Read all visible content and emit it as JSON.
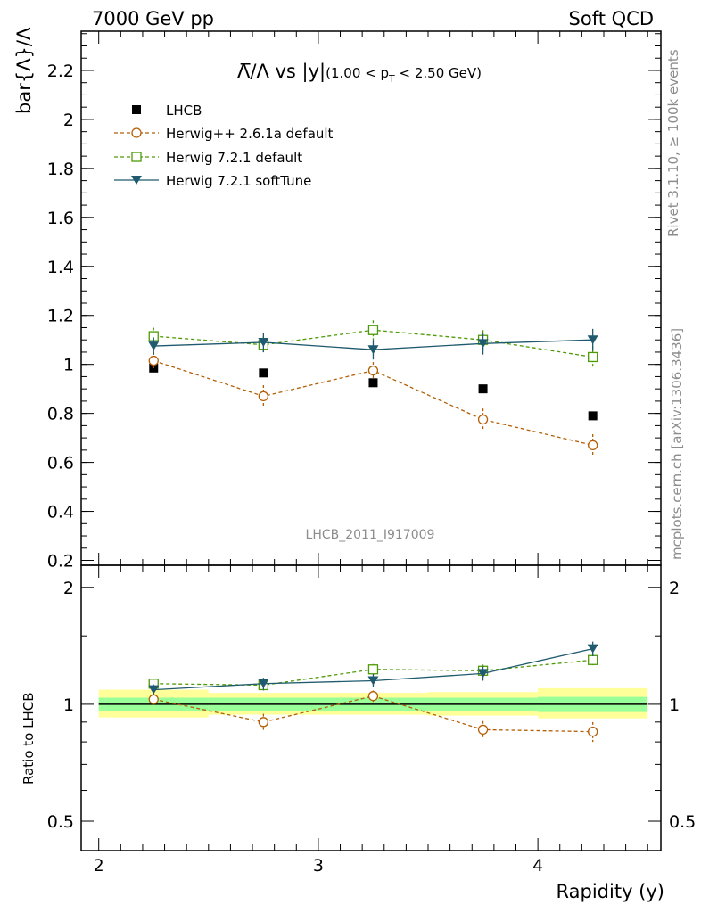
{
  "header": {
    "left": "7000 GeV pp",
    "right": "Soft QCD"
  },
  "side_labels": {
    "rivet": "Rivet 3.1.10, ≥ 100k events",
    "mcplots": "mcplots.cern.ch [arXiv:1306.3436]"
  },
  "watermark": "LHCB_2011_I917009",
  "title": {
    "main": "Λ̅/Λ vs |y|",
    "cut_open": "(1.00 < p",
    "cut_sub": "T",
    "cut_close": " < 2.50 GeV)"
  },
  "colors": {
    "data": "#000000",
    "herwigpp": "#b45f06",
    "herwig721": "#4e9a06",
    "softtune": "#1f5a6e",
    "band_outer": "#ffff99",
    "band_inner": "#99ff99"
  },
  "chart_data": [
    {
      "type": "scatter",
      "ylabel": "bar{Λ}/Λ",
      "xlim": [
        1.92,
        4.56
      ],
      "ylim": [
        0.18,
        2.36
      ],
      "y_ticks": [
        0.2,
        0.4,
        0.6,
        0.8,
        1,
        1.2,
        1.4,
        1.6,
        1.8,
        2,
        2.2
      ],
      "y_tick_labels": [
        "0.2",
        "0.4",
        "0.6",
        "0.8",
        "1",
        "1.2",
        "1.4",
        "1.6",
        "1.8",
        "2",
        "2.2"
      ],
      "legend_position": "top-left",
      "x": [
        2.25,
        2.75,
        3.25,
        3.75,
        4.25
      ],
      "series": [
        {
          "name": "LHCB",
          "marker": "square-filled",
          "values": [
            0.985,
            0.965,
            0.925,
            0.9,
            0.79
          ],
          "errors": [
            0.01,
            0.01,
            0.01,
            0.01,
            0.01
          ]
        },
        {
          "name": "Herwig++ 2.6.1a default",
          "marker": "circle-open",
          "line": "dashed",
          "values": [
            1.015,
            0.87,
            0.975,
            0.775,
            0.67
          ],
          "errors": [
            0.035,
            0.045,
            0.035,
            0.045,
            0.045
          ]
        },
        {
          "name": "Herwig 7.2.1 default",
          "marker": "square-open",
          "line": "dashed",
          "values": [
            1.115,
            1.08,
            1.14,
            1.1,
            1.03
          ],
          "errors": [
            0.035,
            0.035,
            0.04,
            0.04,
            0.045
          ]
        },
        {
          "name": "Herwig 7.2.1 softTune",
          "marker": "triangle-down-filled",
          "line": "solid",
          "values": [
            1.075,
            1.09,
            1.06,
            1.085,
            1.1
          ],
          "errors": [
            0.035,
            0.04,
            0.04,
            0.045,
            0.045
          ]
        }
      ]
    },
    {
      "type": "scatter",
      "xlabel": "Rapidity (y)",
      "ylabel": "Ratio to LHCB",
      "xlim": [
        1.92,
        4.56
      ],
      "ylim": [
        0.42,
        2.28
      ],
      "y_scale": "log",
      "x_ticks": [
        2,
        3,
        4
      ],
      "x_tick_labels": [
        "2",
        "3",
        "4"
      ],
      "y_ticks": [
        0.5,
        1,
        2
      ],
      "y_tick_labels": [
        "0.5",
        "1",
        "2"
      ],
      "x": [
        2.25,
        2.75,
        3.25,
        3.75,
        4.25
      ],
      "band": {
        "x_edges": [
          [
            2.0,
            2.5
          ],
          [
            2.5,
            3.0
          ],
          [
            3.0,
            3.5
          ],
          [
            3.5,
            4.0
          ],
          [
            4.0,
            4.5
          ]
        ],
        "inner_low": [
          0.963,
          0.963,
          0.963,
          0.963,
          0.955
        ],
        "inner_high": [
          1.04,
          1.04,
          1.04,
          1.04,
          1.045
        ],
        "outer_low": [
          0.925,
          0.94,
          0.94,
          0.935,
          0.92
        ],
        "outer_high": [
          1.09,
          1.07,
          1.07,
          1.075,
          1.1
        ]
      },
      "series": [
        {
          "name": "Herwig++ 2.6.1a default",
          "values": [
            1.03,
            0.9,
            1.05,
            0.86,
            0.85
          ],
          "errors": [
            0.035,
            0.045,
            0.035,
            0.045,
            0.05
          ]
        },
        {
          "name": "Herwig 7.2.1 default",
          "values": [
            1.13,
            1.12,
            1.23,
            1.22,
            1.3
          ],
          "errors": [
            0.035,
            0.035,
            0.04,
            0.045,
            0.05
          ]
        },
        {
          "name": "Herwig 7.2.1 softTune",
          "values": [
            1.09,
            1.13,
            1.15,
            1.2,
            1.39
          ],
          "errors": [
            0.035,
            0.04,
            0.045,
            0.05,
            0.06
          ]
        }
      ]
    }
  ]
}
